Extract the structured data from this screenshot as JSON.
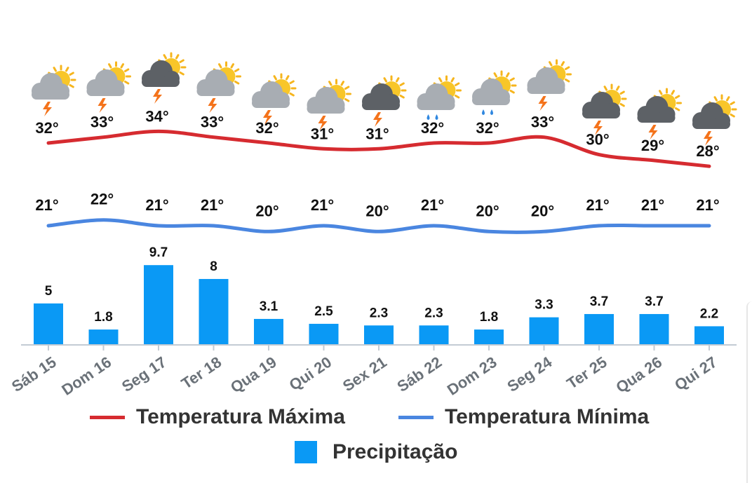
{
  "chart_data": {
    "type": "bar+line",
    "categories": [
      "Sáb 15",
      "Dom 16",
      "Seg 17",
      "Ter 18",
      "Qua 19",
      "Qui 20",
      "Sex 21",
      "Sáb 22",
      "Dom 23",
      "Seg 24",
      "Ter 25",
      "Qua 26",
      "Qui 27"
    ],
    "series": [
      {
        "name": "Temperatura Máxima",
        "kind": "line",
        "color": "#d62b30",
        "values": [
          32,
          33,
          34,
          33,
          32,
          31,
          31,
          32,
          32,
          33,
          30,
          29,
          28
        ],
        "labels": [
          "32°",
          "33°",
          "34°",
          "33°",
          "32°",
          "31°",
          "31°",
          "32°",
          "32°",
          "33°",
          "30°",
          "29°",
          "28°"
        ]
      },
      {
        "name": "Temperatura Mínima",
        "kind": "line",
        "color": "#4a86e0",
        "values": [
          21,
          22,
          21,
          21,
          20,
          21,
          20,
          21,
          20,
          20,
          21,
          21,
          21
        ],
        "labels": [
          "21°",
          "22°",
          "21°",
          "21°",
          "20°",
          "21°",
          "20°",
          "21°",
          "20°",
          "20°",
          "21°",
          "21°",
          "21°"
        ]
      },
      {
        "name": "Precipitação",
        "kind": "bar",
        "color": "#0a99f5",
        "values": [
          5,
          1.8,
          9.7,
          8,
          3.1,
          2.5,
          2.3,
          2.3,
          1.8,
          3.3,
          3.7,
          3.7,
          2.2
        ],
        "labels": [
          "5",
          "1.8",
          "9.7",
          "8",
          "3.1",
          "2.5",
          "2.3",
          "2.3",
          "1.8",
          "3.3",
          "3.7",
          "3.7",
          "2.2"
        ]
      }
    ],
    "icons": [
      "storm-icon",
      "storm-icon",
      "dark-storm-icon",
      "storm-icon",
      "storm-icon",
      "storm-icon",
      "dark-storm-icon",
      "rain-icon",
      "rain-icon",
      "storm-icon",
      "dark-storm-icon",
      "dark-storm-icon",
      "dark-storm-icon"
    ],
    "grid": false,
    "legend_position": "bottom-center"
  },
  "legend": {
    "max": "Temperatura Máxima",
    "min": "Temperatura Mínima",
    "precip": "Precipitação",
    "max_color": "#d62b30",
    "min_color": "#4a86e0",
    "precip_color": "#0a99f5"
  }
}
